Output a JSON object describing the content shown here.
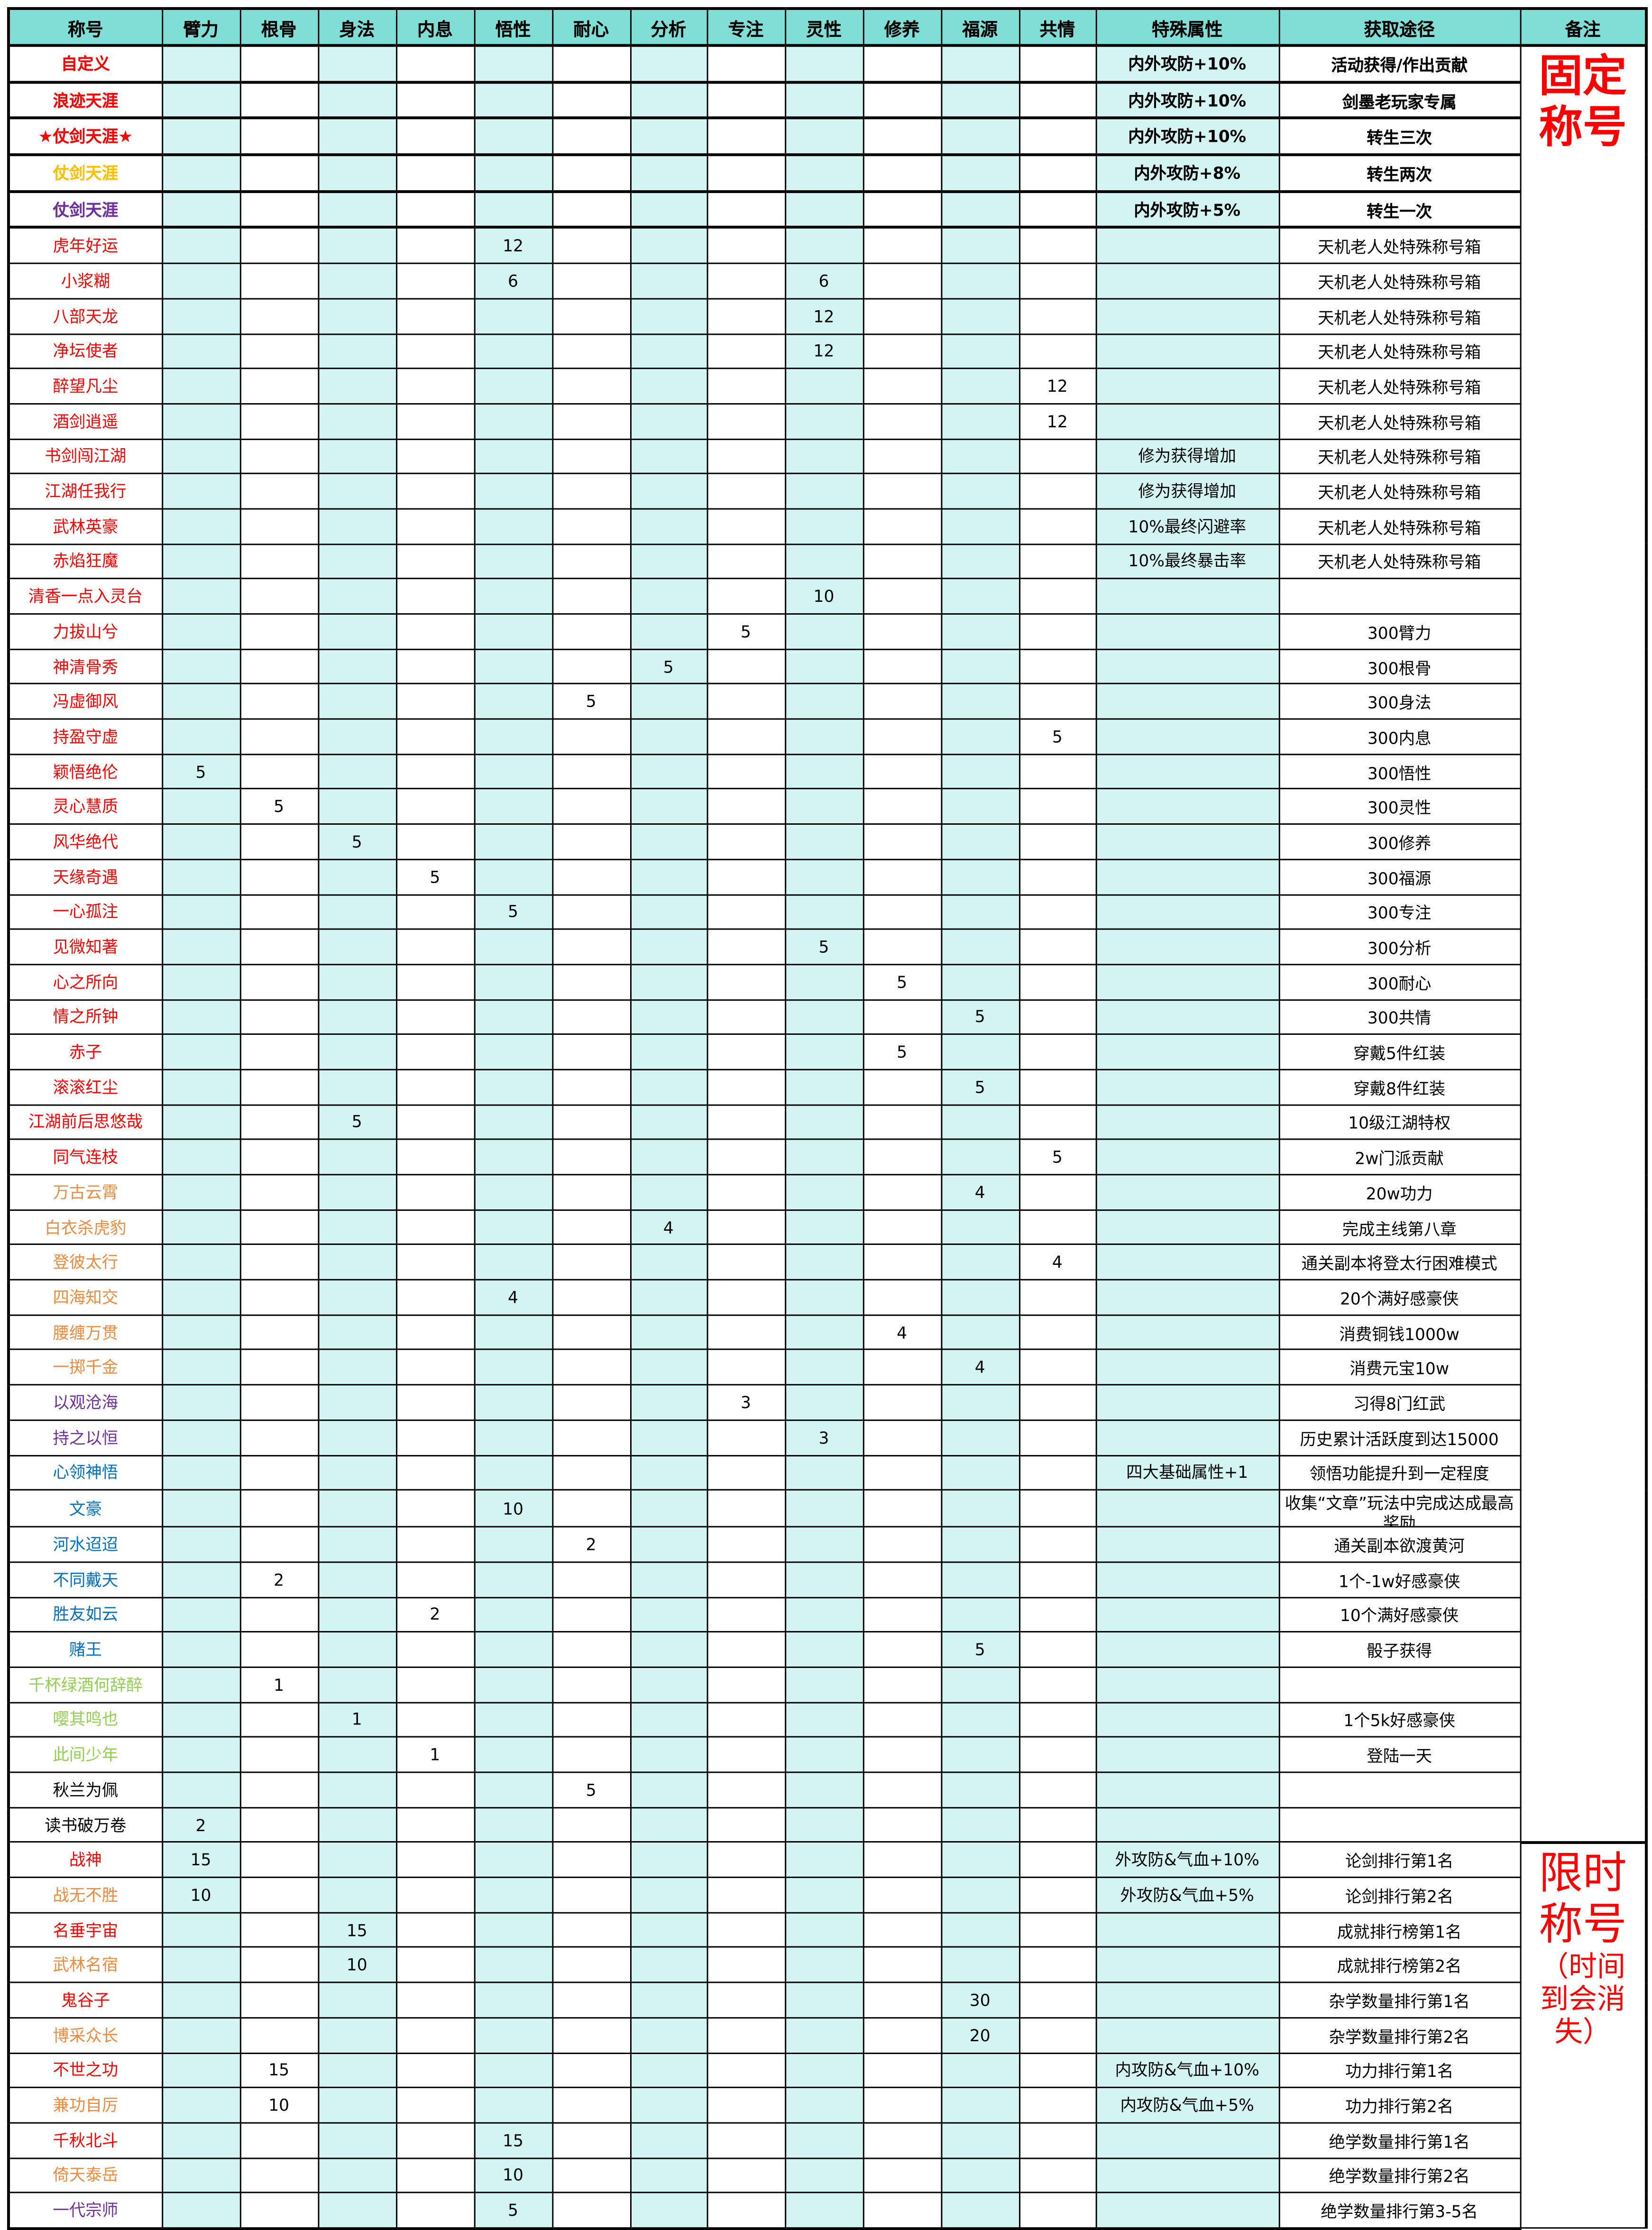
{
  "colors": {
    "red": "#ff0000",
    "orange": "#f08a3c",
    "yellow": "#ffc000",
    "purple": "#7030a0",
    "blue": "#0070c0",
    "green": "#92d050",
    "black": "#000000",
    "header_bg": "#7fdfd6",
    "stat_bg": "#d2f4f2"
  },
  "headers": [
    "称号",
    "臂力",
    "根骨",
    "身法",
    "内息",
    "悟性",
    "耐心",
    "分析",
    "专注",
    "灵性",
    "修养",
    "福源",
    "共情",
    "特殊属性",
    "获取途径",
    "备注"
  ],
  "notes": {
    "fixed": {
      "title": "固定称号",
      "rows": 51
    },
    "limited": {
      "title": "限时称号",
      "sub": "（时间到会消失）",
      "rows": 11
    }
  },
  "rows": [
    {
      "name": "自定义",
      "color": "red",
      "bold": true,
      "stats": {},
      "special": "内外攻防+10%",
      "source": "活动获得/作出贡献"
    },
    {
      "name": "浪迹天涯",
      "color": "red",
      "bold": true,
      "stats": {},
      "special": "内外攻防+10%",
      "source": "剑墨老玩家专属"
    },
    {
      "name": "★仗剑天涯★",
      "color": "red",
      "bold": true,
      "stats": {},
      "special": "内外攻防+10%",
      "source": "转生三次"
    },
    {
      "name": "仗剑天涯",
      "color": "yellow",
      "bold": true,
      "stats": {},
      "special": "内外攻防+8%",
      "source": "转生两次"
    },
    {
      "name": "仗剑天涯",
      "color": "purple",
      "bold": true,
      "stats": {},
      "special": "内外攻防+5%",
      "source": "转生一次"
    },
    {
      "name": "虎年好运",
      "color": "red",
      "stats": {
        "悟性": "12"
      },
      "special": "",
      "source": "天机老人处特殊称号箱"
    },
    {
      "name": "小浆糊",
      "color": "red",
      "stats": {
        "悟性": "6",
        "灵性": "6"
      },
      "special": "",
      "source": "天机老人处特殊称号箱"
    },
    {
      "name": "八部天龙",
      "color": "red",
      "stats": {
        "灵性": "12"
      },
      "special": "",
      "source": "天机老人处特殊称号箱"
    },
    {
      "name": "净坛使者",
      "color": "red",
      "stats": {
        "灵性": "12"
      },
      "special": "",
      "source": "天机老人处特殊称号箱"
    },
    {
      "name": "醉望凡尘",
      "color": "red",
      "stats": {
        "共情": "12"
      },
      "special": "",
      "source": "天机老人处特殊称号箱"
    },
    {
      "name": "酒剑逍遥",
      "color": "red",
      "stats": {
        "共情": "12"
      },
      "special": "",
      "source": "天机老人处特殊称号箱"
    },
    {
      "name": "书剑闯江湖",
      "color": "red",
      "stats": {},
      "special": "修为获得增加",
      "source": "天机老人处特殊称号箱"
    },
    {
      "name": "江湖任我行",
      "color": "red",
      "stats": {},
      "special": "修为获得增加",
      "source": "天机老人处特殊称号箱"
    },
    {
      "name": "武林英豪",
      "color": "red",
      "stats": {},
      "special": "10%最终闪避率",
      "source": "天机老人处特殊称号箱"
    },
    {
      "name": "赤焰狂魔",
      "color": "red",
      "stats": {},
      "special": "10%最终暴击率",
      "source": "天机老人处特殊称号箱"
    },
    {
      "name": "清香一点入灵台",
      "color": "red",
      "stats": {
        "灵性": "10"
      },
      "special": "",
      "source": ""
    },
    {
      "name": "力拔山兮",
      "color": "red",
      "stats": {
        "专注": "5"
      },
      "special": "",
      "source": "300臂力"
    },
    {
      "name": "神清骨秀",
      "color": "red",
      "stats": {
        "分析": "5"
      },
      "special": "",
      "source": "300根骨"
    },
    {
      "name": "冯虚御风",
      "color": "red",
      "stats": {
        "耐心": "5"
      },
      "special": "",
      "source": "300身法"
    },
    {
      "name": "持盈守虚",
      "color": "red",
      "stats": {
        "共情": "5"
      },
      "special": "",
      "source": "300内息"
    },
    {
      "name": "颖悟绝伦",
      "color": "red",
      "stats": {
        "臂力": "5"
      },
      "special": "",
      "source": "300悟性"
    },
    {
      "name": "灵心慧质",
      "color": "red",
      "stats": {
        "根骨": "5"
      },
      "special": "",
      "source": "300灵性"
    },
    {
      "name": "风华绝代",
      "color": "red",
      "stats": {
        "身法": "5"
      },
      "special": "",
      "source": "300修养"
    },
    {
      "name": "天缘奇遇",
      "color": "red",
      "stats": {
        "内息": "5"
      },
      "special": "",
      "source": "300福源"
    },
    {
      "name": "一心孤注",
      "color": "red",
      "stats": {
        "悟性": "5"
      },
      "special": "",
      "source": "300专注"
    },
    {
      "name": "见微知著",
      "color": "red",
      "stats": {
        "灵性": "5"
      },
      "special": "",
      "source": "300分析"
    },
    {
      "name": "心之所向",
      "color": "red",
      "stats": {
        "修养": "5"
      },
      "special": "",
      "source": "300耐心"
    },
    {
      "name": "情之所钟",
      "color": "red",
      "stats": {
        "福源": "5"
      },
      "special": "",
      "source": "300共情"
    },
    {
      "name": "赤子",
      "color": "red",
      "stats": {
        "修养": "5"
      },
      "special": "",
      "source": "穿戴5件红装"
    },
    {
      "name": "滚滚红尘",
      "color": "red",
      "stats": {
        "福源": "5"
      },
      "special": "",
      "source": "穿戴8件红装"
    },
    {
      "name": "江湖前后思悠哉",
      "color": "red",
      "stats": {
        "身法": "5"
      },
      "special": "",
      "source": "10级江湖特权"
    },
    {
      "name": "同气连枝",
      "color": "red",
      "stats": {
        "共情": "5"
      },
      "special": "",
      "source": "2w门派贡献"
    },
    {
      "name": "万古云霄",
      "color": "orange",
      "stats": {
        "福源": "4"
      },
      "special": "",
      "source": "20w功力"
    },
    {
      "name": "白衣杀虎豹",
      "color": "orange",
      "stats": {
        "分析": "4"
      },
      "special": "",
      "source": "完成主线第八章"
    },
    {
      "name": "登彼太行",
      "color": "orange",
      "stats": {
        "共情": "4"
      },
      "special": "",
      "source": "通关副本将登太行困难模式"
    },
    {
      "name": "四海知交",
      "color": "orange",
      "stats": {
        "悟性": "4"
      },
      "special": "",
      "source": "20个满好感豪侠"
    },
    {
      "name": "腰缠万贯",
      "color": "orange",
      "stats": {
        "修养": "4"
      },
      "special": "",
      "source": "消费铜钱1000w"
    },
    {
      "name": "一掷千金",
      "color": "orange",
      "stats": {
        "福源": "4"
      },
      "special": "",
      "source": "消费元宝10w"
    },
    {
      "name": "以观沧海",
      "color": "purple",
      "stats": {
        "专注": "3"
      },
      "special": "",
      "source": "习得8门红武"
    },
    {
      "name": "持之以恒",
      "color": "purple",
      "stats": {
        "灵性": "3"
      },
      "special": "",
      "source": "历史累计活跃度到达15000"
    },
    {
      "name": "心领神悟",
      "color": "blue",
      "stats": {},
      "special": "四大基础属性+1",
      "source": "领悟功能提升到一定程度"
    },
    {
      "name": "文豪",
      "color": "blue",
      "stats": {
        "悟性": "10"
      },
      "special": "",
      "source": "收集“文章”玩法中完成达成最高奖励"
    },
    {
      "name": "河水迢迢",
      "color": "blue",
      "stats": {
        "耐心": "2"
      },
      "special": "",
      "source": "通关副本欲渡黄河"
    },
    {
      "name": "不同戴天",
      "color": "blue",
      "stats": {
        "根骨": "2"
      },
      "special": "",
      "source": "1个-1w好感豪侠"
    },
    {
      "name": "胜友如云",
      "color": "blue",
      "stats": {
        "内息": "2"
      },
      "special": "",
      "source": "10个满好感豪侠"
    },
    {
      "name": "赌王",
      "color": "blue",
      "stats": {
        "福源": "5"
      },
      "special": "",
      "source": "骰子获得"
    },
    {
      "name": "千杯绿酒何辞醉",
      "color": "green",
      "stats": {
        "根骨": "1"
      },
      "special": "",
      "source": ""
    },
    {
      "name": "嘤其鸣也",
      "color": "green",
      "stats": {
        "身法": "1"
      },
      "special": "",
      "source": "1个5k好感豪侠"
    },
    {
      "name": "此间少年",
      "color": "green",
      "stats": {
        "内息": "1"
      },
      "special": "",
      "source": "登陆一天"
    },
    {
      "name": "秋兰为佩",
      "color": "black",
      "stats": {
        "耐心": "5"
      },
      "special": "",
      "source": ""
    },
    {
      "name": "读书破万卷",
      "color": "black",
      "stats": {
        "臂力": "2"
      },
      "special": "",
      "source": ""
    },
    {
      "name": "战神",
      "color": "red",
      "stats": {
        "臂力": "15"
      },
      "special": "外攻防&气血+10%",
      "source": "论剑排行第1名"
    },
    {
      "name": "战无不胜",
      "color": "orange",
      "stats": {
        "臂力": "10"
      },
      "special": "外攻防&气血+5%",
      "source": "论剑排行第2名"
    },
    {
      "name": "名垂宇宙",
      "color": "red",
      "stats": {
        "身法": "15"
      },
      "special": "",
      "source": "成就排行榜第1名"
    },
    {
      "name": "武林名宿",
      "color": "orange",
      "stats": {
        "身法": "10"
      },
      "special": "",
      "source": "成就排行榜第2名"
    },
    {
      "name": "鬼谷子",
      "color": "red",
      "stats": {
        "福源": "30"
      },
      "special": "",
      "source": "杂学数量排行第1名"
    },
    {
      "name": "博采众长",
      "color": "orange",
      "stats": {
        "福源": "20"
      },
      "special": "",
      "source": "杂学数量排行第2名"
    },
    {
      "name": "不世之功",
      "color": "red",
      "stats": {
        "根骨": "15"
      },
      "special": "内攻防&气血+10%",
      "source": "功力排行第1名"
    },
    {
      "name": "兼功自厉",
      "color": "orange",
      "stats": {
        "根骨": "10"
      },
      "special": "内攻防&气血+5%",
      "source": "功力排行第2名"
    },
    {
      "name": "千秋北斗",
      "color": "red",
      "stats": {
        "悟性": "15"
      },
      "special": "",
      "source": "绝学数量排行第1名"
    },
    {
      "name": "倚天泰岳",
      "color": "orange",
      "stats": {
        "悟性": "10"
      },
      "special": "",
      "source": "绝学数量排行第2名"
    },
    {
      "name": "一代宗师",
      "color": "purple",
      "stats": {
        "悟性": "5"
      },
      "special": "",
      "source": "绝学数量排行第3-5名"
    }
  ]
}
